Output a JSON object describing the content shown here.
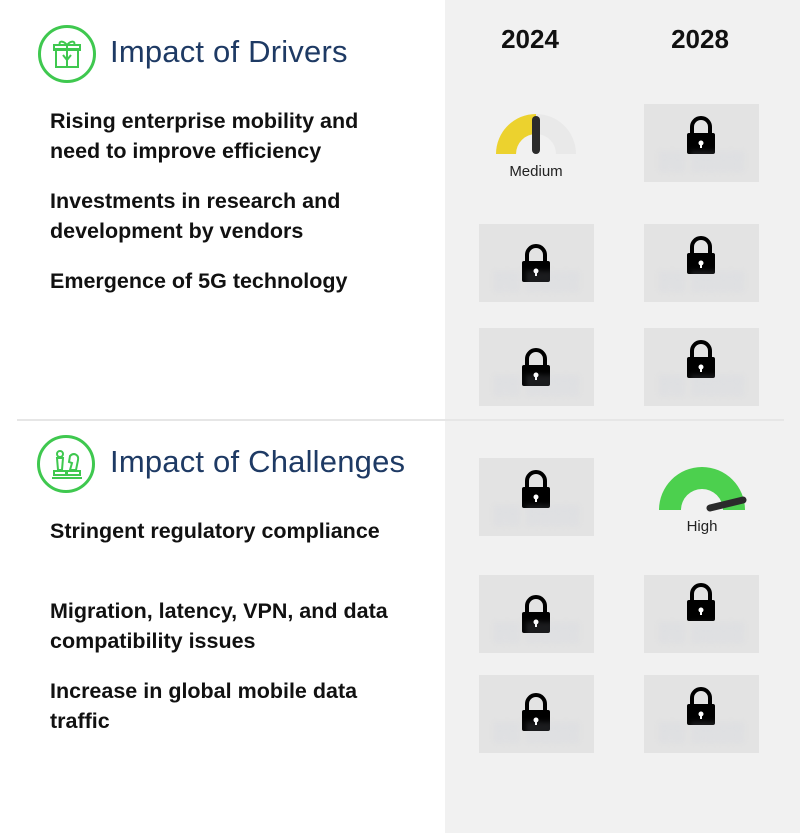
{
  "years": [
    "2024",
    "2028"
  ],
  "drivers": {
    "title": "Impact of Drivers",
    "icon": "gift-box-icon",
    "rows": [
      {
        "label": "Rising enterprise mobility and need to improve efficiency",
        "impact_2024": "Medium",
        "impact_2028": "locked"
      },
      {
        "label": "Investments in research and development by vendors",
        "impact_2024": "locked",
        "impact_2028": "locked"
      },
      {
        "label": "Emergence of 5G technology",
        "impact_2024": "locked",
        "impact_2028": "locked"
      }
    ]
  },
  "challenges": {
    "title": "Impact of Challenges",
    "icon": "chess-pieces-icon",
    "rows": [
      {
        "label": "Stringent regulatory compliance",
        "impact_2024": "locked",
        "impact_2028": "High"
      },
      {
        "label": "Migration, latency, VPN, and data compatibility issues",
        "impact_2024": "locked",
        "impact_2028": "locked"
      },
      {
        "label": "Increase in global mobile data traffic",
        "impact_2024": "locked",
        "impact_2028": "locked"
      }
    ]
  },
  "colors": {
    "accent": "#3fc84f",
    "title": "#1e3a64",
    "medium": "#ecd22e",
    "high": "#4cd04e",
    "panel": "#f1f1f1"
  }
}
